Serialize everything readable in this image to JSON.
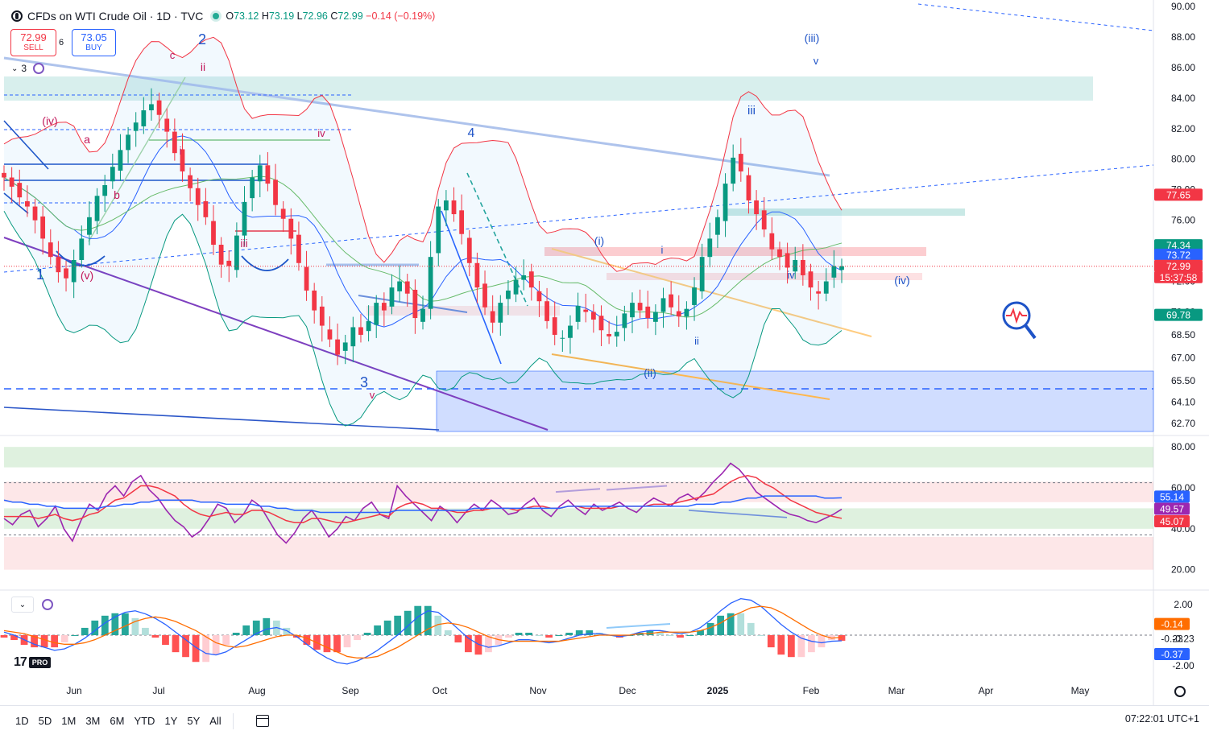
{
  "header": {
    "symbol": "CFDs on WTI Crude Oil · 1D · TVC",
    "open_label": "O",
    "open": "73.12",
    "high_label": "H",
    "high": "73.19",
    "low_label": "L",
    "low": "72.96",
    "close_label": "C",
    "close": "72.99",
    "change": "−0.14 (−0.19%)"
  },
  "trade": {
    "sell_price": "72.99",
    "sell_label": "SELL",
    "buy_price": "73.05",
    "buy_label": "BUY",
    "spread": "6"
  },
  "indicator_count": "3",
  "colors": {
    "up": "#089981",
    "down": "#f23645",
    "accent": "#2962ff",
    "rsi": "#9c27b0",
    "bb_upper": "#f23645",
    "bb_lower": "#089981",
    "bb_mid": "#2962ff",
    "macd": "#2962ff",
    "signal": "#ff6d00"
  },
  "timeframes": [
    "1D",
    "5D",
    "1M",
    "3M",
    "6M",
    "YTD",
    "1Y",
    "5Y",
    "All"
  ],
  "clock": "07:22:01 UTC+1",
  "logo_text": "17",
  "logo_badge": "PRO",
  "chart_data": [
    {
      "type": "candlestick",
      "title": "",
      "x": [
        "Jun",
        "Jul",
        "Aug",
        "Sep",
        "Oct",
        "Nov",
        "Dec",
        "2025",
        "Feb",
        "Mar",
        "Apr",
        "May"
      ],
      "y_ticks": [
        "90.00",
        "88.00",
        "86.00",
        "84.00",
        "82.00",
        "80.00",
        "78.00",
        "76.00",
        "74.00",
        "72.00",
        "70.00",
        "68.50",
        "67.00",
        "65.50",
        "64.10",
        "62.70"
      ],
      "ylim": [
        62.7,
        90.0
      ],
      "price_labels": [
        {
          "value": "77.65",
          "color": "#f23645"
        },
        {
          "value": "74.34",
          "color": "#089981"
        },
        {
          "value": "73.72",
          "color": "#2962ff"
        },
        {
          "value": "72.99",
          "color": "#f23645"
        },
        {
          "value": "15:37:58",
          "color": "#f23645"
        },
        {
          "value": "69.78",
          "color": "#089981"
        }
      ],
      "close_series": [
        78.8,
        78.2,
        77.5,
        76.9,
        76.0,
        74.8,
        73.6,
        72.6,
        72.2,
        73.4,
        74.8,
        76.2,
        77.6,
        78.3,
        79.5,
        80.6,
        81.6,
        82.4,
        83.2,
        83.6,
        82.9,
        81.8,
        80.4,
        79.2,
        78.1,
        77.0,
        76.2,
        74.4,
        73.1,
        73.0,
        75.0,
        77.2,
        78.8,
        79.6,
        78.4,
        77.0,
        76.1,
        74.8,
        73.2,
        71.4,
        70.1,
        69.1,
        68.2,
        67.2,
        68.0,
        69.0,
        68.5,
        69.4,
        70.6,
        70.1,
        71.6,
        72.0,
        71.2,
        69.6,
        70.2,
        73.6,
        76.9,
        77.3,
        76.4,
        75.1,
        73.2,
        71.6,
        70.3,
        69.3,
        70.6,
        71.4,
        72.1,
        72.4,
        71.6,
        70.7,
        69.4,
        68.5,
        68.3,
        69.1,
        70.4,
        70.0,
        69.5,
        68.8,
        68.4,
        68.7,
        69.9,
        70.6,
        70.1,
        69.6,
        70.0,
        70.9,
        70.3,
        69.7,
        70.2,
        71.6,
        73.6,
        74.8,
        76.2,
        78.4,
        80.1,
        79.2,
        77.3,
        76.4,
        75.4,
        74.1,
        73.6,
        72.9,
        73.4,
        72.4,
        71.6,
        71.2,
        72.0,
        73.0,
        72.99
      ],
      "elliott_labels": [
        {
          "text": "1",
          "color": "#1e53c7"
        },
        {
          "text": "2",
          "color": "#1e53c7"
        },
        {
          "text": "3",
          "color": "#1e53c7"
        },
        {
          "text": "4",
          "color": "#1e53c7"
        },
        {
          "text": "(iii)",
          "color": "#1e53c7"
        },
        {
          "text": "v",
          "color": "#1e53c7"
        },
        {
          "text": "iii",
          "color": "#1e53c7"
        },
        {
          "text": "(i)",
          "color": "#1e53c7"
        },
        {
          "text": "i",
          "color": "#1e53c7"
        },
        {
          "text": "iv",
          "color": "#1e53c7"
        },
        {
          "text": "(iv)",
          "color": "#1e53c7"
        },
        {
          "text": "ii",
          "color": "#1e53c7"
        },
        {
          "text": "(ii)",
          "color": "#1e53c7"
        },
        {
          "text": "(iv)",
          "color": "#c2185b"
        },
        {
          "text": "a",
          "color": "#c2185b"
        },
        {
          "text": "b",
          "color": "#c2185b"
        },
        {
          "text": "c",
          "color": "#c2185b"
        },
        {
          "text": "ii",
          "color": "#c2185b"
        },
        {
          "text": "i",
          "color": "#c2185b"
        },
        {
          "text": "iv",
          "color": "#c2185b"
        },
        {
          "text": "iii",
          "color": "#c2185b"
        },
        {
          "text": "(v)",
          "color": "#c2185b"
        },
        {
          "text": "v",
          "color": "#c2185b"
        }
      ]
    },
    {
      "type": "line",
      "title": "",
      "y_ticks": [
        "80.00",
        "60.00",
        "40.00",
        "20.00"
      ],
      "ylim": [
        12,
        84
      ],
      "value_labels": [
        {
          "value": "55.14",
          "color": "#2962ff"
        },
        {
          "value": "49.57",
          "color": "#9c27b0"
        },
        {
          "value": "45.07",
          "color": "#f23645"
        }
      ],
      "series": [
        {
          "values": [
            45,
            42,
            47,
            49,
            41,
            45,
            51,
            40,
            34,
            44,
            52,
            49,
            57,
            61,
            56,
            63,
            66,
            59,
            55,
            49,
            44,
            41,
            36,
            39,
            45,
            52,
            50,
            43,
            47,
            54,
            51,
            44,
            37,
            33,
            38,
            45,
            49,
            43,
            36,
            40,
            46,
            44,
            50,
            53,
            47,
            45,
            61,
            56,
            52,
            48,
            44,
            51,
            48,
            43,
            48,
            52,
            49,
            54,
            51,
            47,
            48,
            52,
            55,
            49,
            46,
            51,
            54,
            50,
            47,
            52,
            49,
            51,
            53,
            50,
            48,
            52,
            55,
            53,
            51,
            55,
            57,
            54,
            58,
            63,
            67,
            72,
            69,
            64,
            58,
            55,
            52,
            49,
            47,
            46,
            44,
            43,
            45,
            47,
            49.57
          ]
        },
        {
          "values": [
            46,
            46,
            46,
            46,
            45,
            46,
            47,
            45,
            44,
            45,
            47,
            48,
            51,
            54,
            55,
            58,
            61,
            61,
            60,
            58,
            56,
            52,
            49,
            47,
            46,
            47,
            48,
            47,
            47,
            49,
            49,
            48,
            46,
            44,
            43,
            43,
            45,
            45,
            44,
            43,
            43,
            44,
            45,
            46,
            47,
            46,
            50,
            52,
            53,
            52,
            50,
            50,
            49,
            48,
            48,
            49,
            49,
            50,
            50,
            50,
            49,
            50,
            51,
            51,
            50,
            50,
            51,
            51,
            50,
            50,
            50,
            50,
            51,
            51,
            51,
            51,
            52,
            52,
            52,
            53,
            54,
            55,
            56,
            57,
            60,
            63,
            65,
            66,
            65,
            62,
            60,
            57,
            54,
            52,
            50,
            48,
            47,
            46,
            45.07
          ]
        },
        {
          "values": [
            54,
            53,
            53,
            52,
            52,
            51,
            51,
            50,
            50,
            50,
            50,
            50,
            51,
            51,
            52,
            52,
            53,
            53,
            54,
            54,
            54,
            54,
            54,
            53,
            53,
            53,
            52,
            52,
            52,
            52,
            51,
            51,
            50,
            50,
            49,
            49,
            49,
            48,
            48,
            48,
            48,
            48,
            48,
            48,
            48,
            48,
            49,
            49,
            49,
            49,
            49,
            49,
            49,
            49,
            49,
            50,
            50,
            50,
            50,
            50,
            50,
            50,
            50,
            50,
            50,
            50,
            51,
            51,
            51,
            51,
            51,
            51,
            51,
            51,
            51,
            51,
            51,
            51,
            51,
            51,
            51,
            52,
            52,
            52,
            53,
            53,
            54,
            55,
            55,
            56,
            56,
            56,
            56,
            56,
            56,
            56,
            55,
            55,
            55.14
          ]
        }
      ]
    },
    {
      "type": "bar",
      "title": "",
      "y_ticks": [
        "2.00",
        "-0.23",
        "-2.00"
      ],
      "ylim": [
        -2.7,
        2.7
      ],
      "value_labels": [
        {
          "value": "-0.14",
          "color": "#ff6d00"
        },
        {
          "value": "-0.23",
          "color": "#131722"
        },
        {
          "value": "-0.37",
          "color": "#2962ff"
        }
      ],
      "macd": [
        0.2,
        0.0,
        -0.3,
        -0.6,
        -0.8,
        -1.0,
        -0.9,
        -0.6,
        -0.2,
        0.3,
        0.8,
        1.2,
        1.5,
        1.6,
        1.4,
        1.1,
        0.7,
        0.2,
        -0.3,
        -0.8,
        -1.2,
        -1.3,
        -1.1,
        -0.7,
        -0.3,
        0.1,
        0.4,
        0.5,
        0.3,
        -0.1,
        -0.6,
        -1.1,
        -1.5,
        -1.8,
        -1.9,
        -1.7,
        -1.4,
        -1.0,
        -0.5,
        0.0,
        0.6,
        1.2,
        1.6,
        1.5,
        1.0,
        0.4,
        -0.2,
        -0.6,
        -0.8,
        -0.7,
        -0.5,
        -0.3,
        -0.3,
        -0.4,
        -0.5,
        -0.4,
        -0.2,
        0.0,
        0.1,
        0.1,
        0.0,
        -0.1,
        0.0,
        0.2,
        0.3,
        0.3,
        0.2,
        0.1,
        0.2,
        0.5,
        1.0,
        1.6,
        2.1,
        2.4,
        2.3,
        1.9,
        1.3,
        0.7,
        0.2,
        -0.2,
        -0.4,
        -0.5,
        -0.4,
        -0.37
      ],
      "signal": [
        0.3,
        0.2,
        0.1,
        -0.1,
        -0.3,
        -0.5,
        -0.6,
        -0.6,
        -0.5,
        -0.3,
        0.0,
        0.3,
        0.6,
        0.9,
        1.1,
        1.2,
        1.1,
        0.9,
        0.6,
        0.3,
        -0.1,
        -0.5,
        -0.7,
        -0.8,
        -0.7,
        -0.5,
        -0.3,
        -0.1,
        0.0,
        0.0,
        -0.2,
        -0.5,
        -0.8,
        -1.1,
        -1.4,
        -1.5,
        -1.5,
        -1.4,
        -1.1,
        -0.8,
        -0.4,
        0.0,
        0.4,
        0.7,
        0.8,
        0.7,
        0.5,
        0.2,
        -0.1,
        -0.3,
        -0.4,
        -0.4,
        -0.4,
        -0.4,
        -0.4,
        -0.4,
        -0.3,
        -0.2,
        -0.1,
        0.0,
        0.0,
        0.0,
        0.0,
        0.1,
        0.1,
        0.2,
        0.2,
        0.2,
        0.2,
        0.3,
        0.5,
        0.8,
        1.2,
        1.5,
        1.8,
        1.9,
        1.8,
        1.5,
        1.1,
        0.7,
        0.3,
        0.0,
        -0.2,
        -0.14
      ]
    }
  ]
}
